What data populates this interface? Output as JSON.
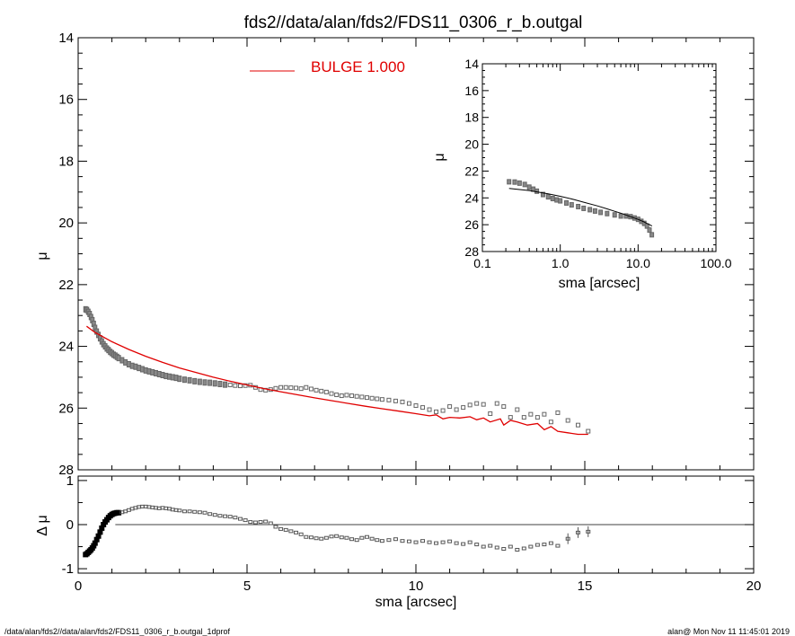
{
  "footer": {
    "left": "/data/alan/fds2//data/alan/fds2/FDS11_0306_r_b.outgal_1dprof",
    "right": "alan@  Mon Nov 11 11:45:01 2019"
  },
  "colors": {
    "model": "#e00000",
    "data": "#7a7a7a",
    "axis": "#000000"
  },
  "chart_data": [
    {
      "id": "main",
      "type": "scatter",
      "title": "fds2//data/alan/fds2/FDS11_0306_r_b.outgal",
      "xlabel": "",
      "ylabel": "μ",
      "xlim": [
        0,
        20
      ],
      "ylim": [
        28,
        14
      ],
      "yticks": [
        14,
        16,
        18,
        20,
        22,
        24,
        26,
        28
      ],
      "legend": {
        "label": "BULGE  1.000",
        "placement": "top-center"
      },
      "series": [
        {
          "name": "",
          "kind": "points",
          "x": [
            0.22,
            0.26,
            0.3,
            0.34,
            0.38,
            0.42,
            0.46,
            0.5,
            0.55,
            0.6,
            0.65,
            0.7,
            0.75,
            0.8,
            0.85,
            0.9,
            0.95,
            1.0,
            1.05,
            1.1,
            1.15,
            1.2,
            1.3,
            1.4,
            1.5,
            1.6,
            1.7,
            1.8,
            1.9,
            2.0,
            2.1,
            2.2,
            2.3,
            2.4,
            2.5,
            2.6,
            2.7,
            2.8,
            2.9,
            3.0,
            3.15,
            3.3,
            3.45,
            3.6,
            3.75,
            3.9,
            4.05,
            4.2,
            4.35,
            4.5,
            4.65,
            4.8,
            4.95,
            5.1,
            5.25,
            5.4,
            5.55,
            5.7,
            5.85,
            6.0,
            6.15,
            6.3,
            6.45,
            6.6,
            6.75,
            6.9,
            7.05,
            7.2,
            7.35,
            7.5,
            7.65,
            7.8,
            7.95,
            8.1,
            8.25,
            8.4,
            8.55,
            8.7,
            8.85,
            9.0,
            9.2,
            9.4,
            9.6,
            9.8,
            10.0,
            10.2,
            10.4,
            10.6,
            10.8,
            11.0,
            11.2,
            11.4,
            11.6,
            11.8,
            12.0,
            12.2,
            12.4,
            12.6,
            12.8,
            13.0,
            13.2,
            13.4,
            13.6,
            13.8,
            14.0,
            14.2,
            14.5,
            14.8,
            15.1
          ],
          "y": [
            22.8,
            22.82,
            22.88,
            22.95,
            23.05,
            23.15,
            23.27,
            23.4,
            23.52,
            23.63,
            23.74,
            23.84,
            23.93,
            24.0,
            24.07,
            24.12,
            24.18,
            24.22,
            24.27,
            24.3,
            24.34,
            24.38,
            24.45,
            24.52,
            24.58,
            24.63,
            24.66,
            24.7,
            24.74,
            24.78,
            24.81,
            24.84,
            24.87,
            24.9,
            24.93,
            24.96,
            24.98,
            25.0,
            25.02,
            25.05,
            25.08,
            25.1,
            25.13,
            25.15,
            25.17,
            25.18,
            25.2,
            25.22,
            25.24,
            25.25,
            25.27,
            25.28,
            25.27,
            25.26,
            25.33,
            25.4,
            25.42,
            25.4,
            25.36,
            25.33,
            25.33,
            25.34,
            25.35,
            25.37,
            25.33,
            25.38,
            25.42,
            25.45,
            25.48,
            25.53,
            25.57,
            25.6,
            25.58,
            25.6,
            25.62,
            25.64,
            25.66,
            25.68,
            25.7,
            25.72,
            25.74,
            25.77,
            25.8,
            25.85,
            25.92,
            25.98,
            26.05,
            26.12,
            26.08,
            25.95,
            26.05,
            25.98,
            25.9,
            25.85,
            25.88,
            26.18,
            25.85,
            25.95,
            26.3,
            26.05,
            26.3,
            26.2,
            26.3,
            26.2,
            26.45,
            26.15,
            26.4,
            26.55,
            26.75
          ]
        },
        {
          "name": "BULGE  1.000",
          "kind": "line",
          "x": [
            0.25,
            0.5,
            1,
            1.5,
            2,
            2.5,
            3,
            3.5,
            4,
            4.5,
            5,
            5.5,
            6,
            6.5,
            7,
            7.5,
            8,
            8.5,
            9,
            9.5,
            10,
            10.4,
            10.6,
            10.8,
            11,
            11.3,
            11.6,
            11.8,
            12,
            12.2,
            12.5,
            12.6,
            12.8,
            13.0,
            13.3,
            13.6,
            13.8,
            14.0,
            14.2,
            14.5,
            14.8,
            15.1
          ],
          "y": [
            23.35,
            23.55,
            23.85,
            24.1,
            24.32,
            24.52,
            24.7,
            24.85,
            25.0,
            25.13,
            25.25,
            25.37,
            25.47,
            25.57,
            25.67,
            25.76,
            25.85,
            25.94,
            26.02,
            26.1,
            26.18,
            26.25,
            26.22,
            26.35,
            26.3,
            26.32,
            26.28,
            26.38,
            26.32,
            26.45,
            26.35,
            26.55,
            26.4,
            26.45,
            26.55,
            26.5,
            26.7,
            26.6,
            26.75,
            26.8,
            26.85,
            26.85
          ]
        }
      ]
    },
    {
      "id": "residual",
      "type": "scatter",
      "xlabel": "sma [arcsec]",
      "ylabel": "Δ μ",
      "xlim": [
        0,
        20
      ],
      "ylim": [
        -1.1,
        1.1
      ],
      "xticks": [
        0,
        5,
        10,
        15,
        20
      ],
      "yticks": [
        -1,
        0,
        1
      ],
      "zero_line": true,
      "series": [
        {
          "name": "",
          "kind": "points",
          "x": [
            0.22,
            0.26,
            0.3,
            0.34,
            0.38,
            0.42,
            0.46,
            0.5,
            0.55,
            0.6,
            0.65,
            0.7,
            0.75,
            0.8,
            0.85,
            0.9,
            0.95,
            1.0,
            1.05,
            1.1,
            1.15,
            1.2,
            1.3,
            1.4,
            1.5,
            1.6,
            1.7,
            1.8,
            1.9,
            2.0,
            2.1,
            2.2,
            2.3,
            2.4,
            2.5,
            2.6,
            2.7,
            2.8,
            2.9,
            3.0,
            3.15,
            3.3,
            3.45,
            3.6,
            3.75,
            3.9,
            4.05,
            4.2,
            4.35,
            4.5,
            4.65,
            4.8,
            4.95,
            5.1,
            5.25,
            5.4,
            5.55,
            5.7,
            5.85,
            6.0,
            6.15,
            6.3,
            6.45,
            6.6,
            6.75,
            6.9,
            7.05,
            7.2,
            7.35,
            7.5,
            7.65,
            7.8,
            7.95,
            8.1,
            8.25,
            8.4,
            8.55,
            8.7,
            8.85,
            9.0,
            9.2,
            9.4,
            9.6,
            9.8,
            10.0,
            10.2,
            10.4,
            10.6,
            10.8,
            11.0,
            11.2,
            11.4,
            11.6,
            11.8,
            12.0,
            12.2,
            12.4,
            12.6,
            12.8,
            13.0,
            13.2,
            13.4,
            13.6,
            13.8,
            14.0,
            14.2,
            14.5,
            14.8,
            15.1
          ],
          "y": [
            -0.68,
            -0.66,
            -0.63,
            -0.6,
            -0.57,
            -0.53,
            -0.48,
            -0.42,
            -0.34,
            -0.26,
            -0.17,
            -0.08,
            0.0,
            0.06,
            0.11,
            0.16,
            0.2,
            0.23,
            0.25,
            0.26,
            0.27,
            0.27,
            0.28,
            0.3,
            0.33,
            0.36,
            0.38,
            0.4,
            0.41,
            0.41,
            0.4,
            0.39,
            0.38,
            0.37,
            0.38,
            0.37,
            0.36,
            0.34,
            0.33,
            0.32,
            0.3,
            0.3,
            0.29,
            0.28,
            0.27,
            0.24,
            0.22,
            0.2,
            0.19,
            0.18,
            0.16,
            0.13,
            0.1,
            0.06,
            0.05,
            0.06,
            0.07,
            0.03,
            -0.05,
            -0.1,
            -0.12,
            -0.15,
            -0.18,
            -0.22,
            -0.28,
            -0.29,
            -0.31,
            -0.32,
            -0.3,
            -0.27,
            -0.26,
            -0.29,
            -0.3,
            -0.33,
            -0.35,
            -0.3,
            -0.28,
            -0.32,
            -0.35,
            -0.37,
            -0.35,
            -0.33,
            -0.37,
            -0.38,
            -0.4,
            -0.37,
            -0.4,
            -0.42,
            -0.4,
            -0.38,
            -0.42,
            -0.44,
            -0.4,
            -0.45,
            -0.5,
            -0.48,
            -0.52,
            -0.55,
            -0.5,
            -0.57,
            -0.54,
            -0.5,
            -0.46,
            -0.45,
            -0.42,
            -0.48,
            -0.32,
            -0.18,
            -0.16
          ]
        }
      ]
    },
    {
      "id": "inset",
      "type": "scatter",
      "xlabel": "sma [arcsec]",
      "ylabel": "μ",
      "xscale": "log",
      "xlim": [
        0.1,
        100.0
      ],
      "ylim": [
        28,
        14
      ],
      "xtick_labels": [
        "0.1",
        "1.0",
        "10.0",
        "100.0"
      ],
      "yticks": [
        14,
        16,
        18,
        20,
        22,
        24,
        26,
        28
      ],
      "series": [
        {
          "name": "",
          "kind": "points",
          "x": [
            0.22,
            0.26,
            0.3,
            0.35,
            0.4,
            0.45,
            0.5,
            0.6,
            0.7,
            0.8,
            0.9,
            1.0,
            1.2,
            1.4,
            1.7,
            2.0,
            2.4,
            2.8,
            3.3,
            4.0,
            5.0,
            6.0,
            7.0,
            8.0,
            9.0,
            10.0,
            11.0,
            12.0,
            13.0,
            14.0,
            15.0
          ],
          "y": [
            22.8,
            22.82,
            22.9,
            23.0,
            23.2,
            23.35,
            23.5,
            23.75,
            23.92,
            24.05,
            24.15,
            24.22,
            24.38,
            24.52,
            24.65,
            24.78,
            24.88,
            24.98,
            25.08,
            25.17,
            25.27,
            25.35,
            25.35,
            25.4,
            25.5,
            25.6,
            25.75,
            25.9,
            26.1,
            26.4,
            26.75
          ]
        },
        {
          "name": "BULGE  1.000",
          "kind": "line",
          "x": [
            0.22,
            0.4,
            0.7,
            1.0,
            1.5,
            2.0,
            3.0,
            4.0,
            5.0,
            6.0,
            8.0,
            10.0,
            12.0,
            14.0,
            15.1
          ],
          "y": [
            23.3,
            23.45,
            23.7,
            23.88,
            24.12,
            24.32,
            24.6,
            24.82,
            25.0,
            25.14,
            25.4,
            25.6,
            25.8,
            26.0,
            26.1
          ]
        }
      ]
    }
  ]
}
